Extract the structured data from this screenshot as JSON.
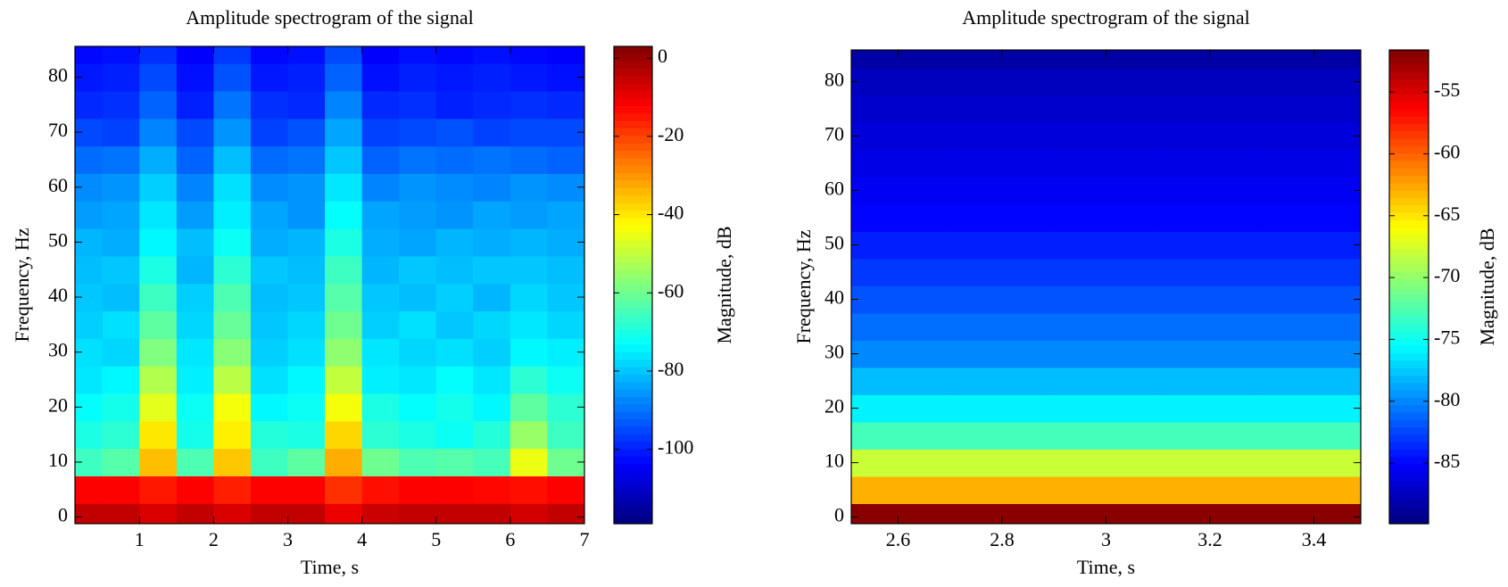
{
  "chart_data": [
    {
      "type": "heatmap",
      "title": "Amplitude spectrogram of the signal",
      "x_label": "Time, s",
      "y_label": "Frequency, Hz",
      "colorbar_label": "Magnitude, dB",
      "colormap": "jet",
      "x": [
        0.25,
        0.75,
        1.25,
        1.75,
        2.25,
        2.75,
        3.25,
        3.75,
        4.25,
        4.75,
        5.25,
        5.75,
        6.25,
        6.75
      ],
      "y": [
        0,
        5,
        10,
        15,
        20,
        25,
        30,
        35,
        40,
        45,
        50,
        55,
        60,
        65,
        70,
        75,
        80,
        85
      ],
      "z": [
        [
          -5,
          -5,
          -8,
          -5,
          -8,
          -5,
          -5,
          -10,
          -6,
          -5,
          -5,
          -5,
          -7,
          -5
        ],
        [
          -12,
          -12,
          -15,
          -12,
          -16,
          -12,
          -12,
          -18,
          -14,
          -12,
          -12,
          -13,
          -14,
          -12
        ],
        [
          -66,
          -63,
          -35,
          -64,
          -36,
          -66,
          -62,
          -33,
          -60,
          -64,
          -63,
          -65,
          -45,
          -60
        ],
        [
          -70,
          -68,
          -40,
          -71,
          -41,
          -69,
          -70,
          -38,
          -68,
          -70,
          -72,
          -69,
          -55,
          -66
        ],
        [
          -73,
          -71,
          -46,
          -72,
          -44,
          -74,
          -72,
          -44,
          -70,
          -73,
          -71,
          -74,
          -62,
          -68
        ],
        [
          -76,
          -74,
          -52,
          -75,
          -51,
          -77,
          -74,
          -50,
          -75,
          -76,
          -73,
          -76,
          -68,
          -72
        ],
        [
          -77,
          -78,
          -58,
          -76,
          -57,
          -79,
          -77,
          -56,
          -76,
          -78,
          -77,
          -79,
          -74,
          -75
        ],
        [
          -79,
          -77,
          -62,
          -78,
          -61,
          -80,
          -78,
          -60,
          -79,
          -77,
          -80,
          -78,
          -76,
          -78
        ],
        [
          -80,
          -81,
          -66,
          -79,
          -64,
          -81,
          -80,
          -63,
          -80,
          -81,
          -79,
          -82,
          -78,
          -80
        ],
        [
          -81,
          -80,
          -70,
          -82,
          -68,
          -80,
          -81,
          -66,
          -82,
          -80,
          -81,
          -80,
          -80,
          -81
        ],
        [
          -82,
          -83,
          -74,
          -81,
          -72,
          -83,
          -82,
          -70,
          -83,
          -84,
          -82,
          -83,
          -82,
          -83
        ],
        [
          -85,
          -84,
          -76,
          -85,
          -75,
          -84,
          -86,
          -73,
          -84,
          -85,
          -86,
          -84,
          -85,
          -84
        ],
        [
          -87,
          -86,
          -79,
          -88,
          -77,
          -87,
          -86,
          -76,
          -88,
          -86,
          -87,
          -88,
          -86,
          -87
        ],
        [
          -91,
          -90,
          -83,
          -92,
          -81,
          -91,
          -90,
          -80,
          -92,
          -90,
          -91,
          -90,
          -91,
          -92
        ],
        [
          -95,
          -96,
          -88,
          -95,
          -86,
          -96,
          -94,
          -84,
          -96,
          -95,
          -94,
          -96,
          -95,
          -95
        ],
        [
          -99,
          -98,
          -92,
          -100,
          -90,
          -98,
          -99,
          -88,
          -99,
          -98,
          -100,
          -99,
          -98,
          -99
        ],
        [
          -101,
          -100,
          -95,
          -102,
          -94,
          -101,
          -100,
          -92,
          -102,
          -100,
          -101,
          -100,
          -101,
          -102
        ],
        [
          -103,
          -102,
          -98,
          -104,
          -97,
          -103,
          -102,
          -95,
          -104,
          -102,
          -103,
          -102,
          -103,
          -104
        ]
      ],
      "xlim": [
        0.13,
        7.0
      ],
      "xticks": [
        1,
        2,
        3,
        4,
        5,
        6,
        7
      ],
      "ylim": [
        -1.2,
        85.6
      ],
      "yticks": [
        0,
        10,
        20,
        30,
        40,
        50,
        60,
        70,
        80
      ],
      "clim": [
        -119,
        3
      ],
      "cticks": [
        -100,
        -80,
        -60,
        -40,
        -20,
        0
      ]
    },
    {
      "type": "heatmap",
      "title": "Amplitude spectrogram of the signal",
      "x_label": "Time, s",
      "y_label": "Frequency, Hz",
      "colorbar_label": "Magnitude, dB",
      "colormap": "jet",
      "x": [
        2.6,
        2.8,
        3,
        3.2,
        3.4
      ],
      "y": [
        0,
        5,
        10,
        15,
        20,
        25,
        30,
        35,
        40,
        45,
        50,
        55,
        60,
        65,
        70,
        75,
        80,
        85
      ],
      "z": [
        [
          -52,
          -52,
          -52,
          -52,
          -52
        ],
        [
          -63,
          -63,
          -63,
          -63,
          -63
        ],
        [
          -68,
          -68,
          -68,
          -68,
          -68
        ],
        [
          -73,
          -73,
          -73,
          -73,
          -73
        ],
        [
          -76,
          -76,
          -76,
          -76,
          -76
        ],
        [
          -78,
          -78,
          -78,
          -78,
          -78
        ],
        [
          -80,
          -80,
          -80,
          -80,
          -80
        ],
        [
          -81,
          -81,
          -81,
          -81,
          -81
        ],
        [
          -82,
          -82,
          -82,
          -82,
          -82
        ],
        [
          -83,
          -83,
          -83,
          -83,
          -83
        ],
        [
          -84,
          -84,
          -84,
          -84,
          -84
        ],
        [
          -85,
          -85,
          -85,
          -85,
          -85
        ],
        [
          -85.5,
          -85.5,
          -85.5,
          -85.5,
          -85.5
        ],
        [
          -86,
          -86,
          -86,
          -86,
          -86
        ],
        [
          -86.5,
          -86.5,
          -86.5,
          -86.5,
          -86.5
        ],
        [
          -87,
          -87,
          -87,
          -87,
          -87
        ],
        [
          -87.5,
          -87.5,
          -87.5,
          -87.5,
          -87.5
        ],
        [
          -88.5,
          -88.5,
          -88.5,
          -88.5,
          -88.5
        ]
      ],
      "xlim": [
        2.51,
        3.49
      ],
      "xticks": [
        2.6,
        2.8,
        3,
        3.2,
        3.4
      ],
      "ylim": [
        -1.2,
        85.8
      ],
      "yticks": [
        0,
        10,
        20,
        30,
        40,
        50,
        60,
        70,
        80
      ],
      "clim": [
        -89.9,
        -51.6
      ],
      "cticks": [
        -85,
        -80,
        -75,
        -70,
        -65,
        -60,
        -55
      ]
    }
  ]
}
